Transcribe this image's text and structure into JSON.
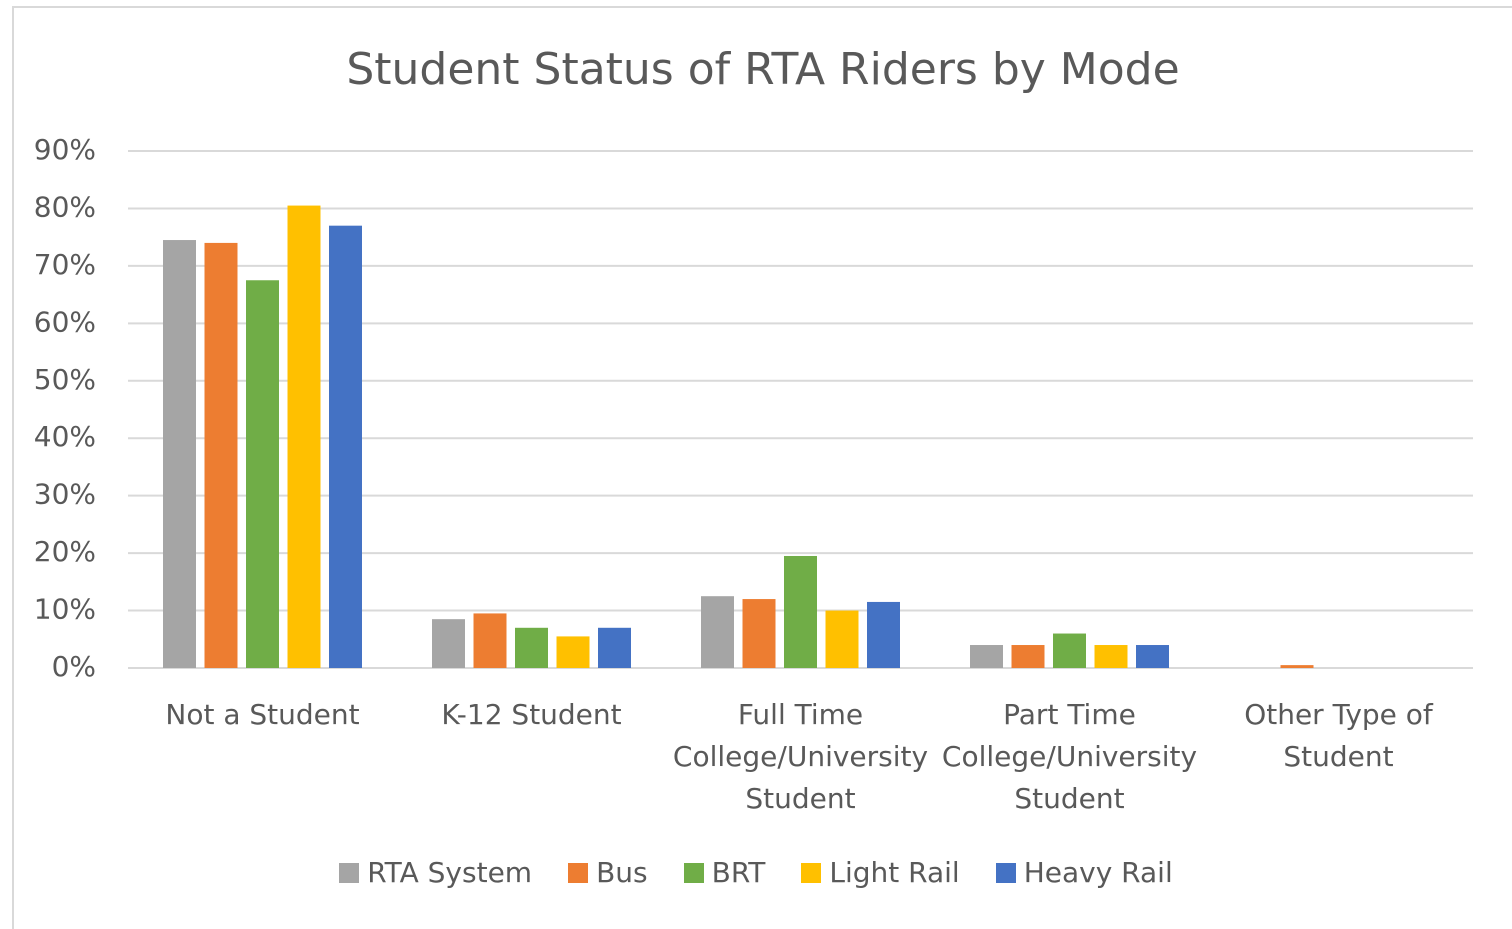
{
  "chart_data": {
    "type": "bar",
    "title": "Student Status of RTA Riders by Mode",
    "categories": [
      "Not a Student",
      "K-12 Student",
      "Full Time College/University Student",
      "Part Time College/University Student",
      "Other Type of Student"
    ],
    "series": [
      {
        "name": "RTA System",
        "color": "#a5a5a5",
        "values": [
          74.5,
          8.5,
          12.5,
          4,
          0
        ]
      },
      {
        "name": "Bus",
        "color": "#ed7d31",
        "values": [
          74,
          9.5,
          12,
          4,
          0.5
        ]
      },
      {
        "name": "BRT",
        "color": "#70ad47",
        "values": [
          67.5,
          7,
          19.5,
          6,
          0
        ]
      },
      {
        "name": "Light Rail",
        "color": "#ffc000",
        "values": [
          80.5,
          5.5,
          10,
          4,
          0
        ]
      },
      {
        "name": "Heavy Rail",
        "color": "#4472c4",
        "values": [
          77,
          7,
          11.5,
          4,
          0
        ]
      }
    ],
    "ylim": [
      0,
      90
    ],
    "yticks": [
      {
        "value": 0,
        "label": "0%"
      },
      {
        "value": 10,
        "label": "10%"
      },
      {
        "value": 20,
        "label": "20%"
      },
      {
        "value": 30,
        "label": "30%"
      },
      {
        "value": 40,
        "label": "40%"
      },
      {
        "value": 50,
        "label": "50%"
      },
      {
        "value": 60,
        "label": "60%"
      },
      {
        "value": 70,
        "label": "70%"
      },
      {
        "value": 80,
        "label": "80%"
      },
      {
        "value": 90,
        "label": "90%"
      }
    ],
    "grid": true,
    "legend": "bottom"
  }
}
